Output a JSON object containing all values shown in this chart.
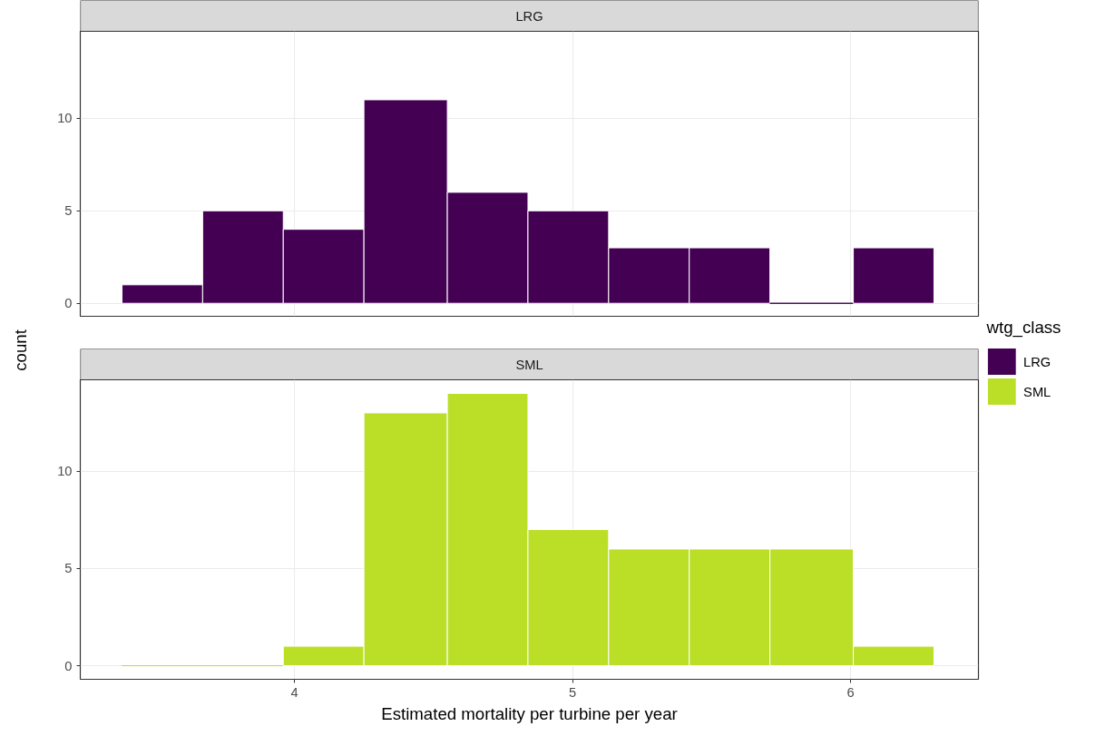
{
  "chart_data": [
    {
      "type": "histogram",
      "title": "LRG",
      "ylabel": "count",
      "legend_title": "wtg_class",
      "legend": "right",
      "tick_labels": "y",
      "grid": true,
      "bins": [
        3.38,
        3.67,
        3.96,
        4.25,
        4.55,
        4.84,
        5.13,
        5.42,
        5.71,
        6.01,
        6.3
      ],
      "series": [
        {
          "name": "LRG",
          "color": "#440154",
          "values": [
            1,
            5,
            4,
            11,
            6,
            5,
            3,
            3,
            0,
            3
          ]
        }
      ],
      "xlim": [
        3.23,
        6.46
      ],
      "xticks": [
        4,
        5,
        6
      ],
      "ylim": [
        -0.7,
        14.7
      ],
      "yticks": [
        0,
        5,
        10
      ]
    },
    {
      "type": "histogram",
      "title": "SML",
      "xlabel": "Estimated mortality per turbine per year",
      "legend": "right",
      "grid": true,
      "bins": [
        3.38,
        3.67,
        3.96,
        4.25,
        4.55,
        4.84,
        5.13,
        5.42,
        5.71,
        6.01,
        6.3
      ],
      "series": [
        {
          "name": "SML",
          "color": "#bbdf27",
          "values": [
            0,
            0,
            1,
            13,
            14,
            7,
            6,
            6,
            6,
            1
          ]
        }
      ],
      "xlim": [
        3.23,
        6.46
      ],
      "xticks": [
        4,
        5,
        6
      ],
      "ylim": [
        -0.7,
        14.7
      ],
      "yticks": [
        0,
        5,
        10
      ]
    }
  ]
}
